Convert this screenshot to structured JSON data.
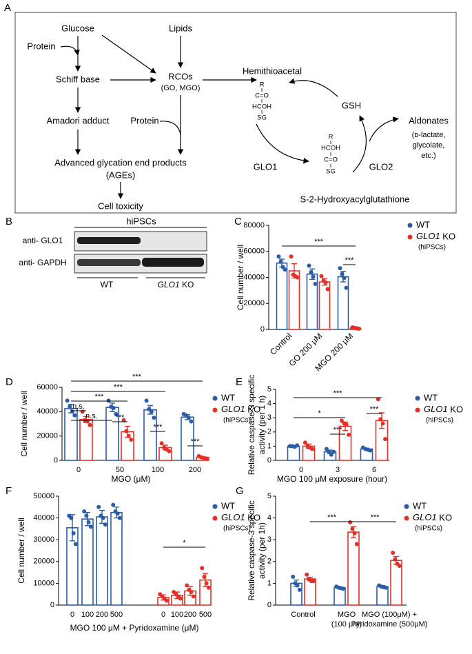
{
  "diagram": {
    "panel": "A",
    "labels": [
      "Glucose",
      "Protein",
      "Lipids",
      "Schiff base",
      "RCOs",
      "(GO, MGO)",
      "Amadori adduct",
      "Protein",
      "Advanced glycation end products",
      "(AGEs)",
      "Cell toxicity",
      "Hemithioacetal",
      "R",
      "C=O",
      "HCOH",
      "SG",
      "GSH",
      "Aldonates",
      "(ᴅ-lactate,",
      "glycolate,",
      "etc.)",
      "GLO1",
      "GLO2",
      "R",
      "HCOH",
      "C=O",
      "SG",
      "S-2-Hydroxyacylglutathione"
    ]
  },
  "blot": {
    "panel": "B",
    "title": "hiPSCs",
    "rows": [
      "anti- GLO1",
      "anti- GAPDH"
    ],
    "groups": [
      "WT",
      "GLO1 KO"
    ]
  },
  "chart_data": [
    {
      "type": "bar",
      "panel": "C",
      "ylabel": [
        "Cell number / well"
      ],
      "categories": [
        "Control",
        "GO 200 μM",
        "MGO 200 μM"
      ],
      "ylim": [
        0,
        80000
      ],
      "yticks": [
        0,
        20000,
        40000,
        60000,
        80000
      ],
      "legend_note": "(hiPSCs)",
      "annotations": [
        "***",
        "***"
      ],
      "series": [
        {
          "name": "WT",
          "color": "#2a5caa",
          "values": [
            51000,
            42500,
            40500
          ],
          "errors": [
            3000,
            4000,
            4000
          ],
          "points": [
            [
              56000,
              52000,
              48000,
              46000
            ],
            [
              49000,
              44000,
              40500,
              35000
            ],
            [
              47000,
              42500,
              39500,
              32000
            ]
          ]
        },
        {
          "name": "GLO1 KO",
          "color": "#e53027",
          "values": [
            45000,
            36500,
            1000
          ],
          "errors": [
            5500,
            2500,
            300
          ],
          "points": [
            [
              56000,
              42000,
              41000,
              40000
            ],
            [
              41000,
              37500,
              36000,
              31000
            ],
            [
              1500,
              1200,
              900,
              500
            ]
          ]
        }
      ]
    },
    {
      "type": "bar",
      "panel": "D",
      "ylabel": [
        "Cell number / well"
      ],
      "xlabel": "MGO (μM)",
      "categories": [
        "0",
        "50",
        "100",
        "200"
      ],
      "ylim": [
        0,
        60000
      ],
      "yticks": [
        0,
        20000,
        40000,
        60000
      ],
      "legend_note": "(hiPSCs)",
      "annotations": [
        "***",
        "***",
        "***",
        "n.s.",
        "n.s.",
        "***",
        "***",
        "***"
      ],
      "series": [
        {
          "name": "WT",
          "color": "#2a5caa",
          "values": [
            42500,
            43500,
            41500,
            35500
          ],
          "errors": [
            3500,
            3500,
            3500,
            2000
          ],
          "points": [
            [
              49000,
              44000,
              40000,
              37000
            ],
            [
              49000,
              44000,
              43000,
              38000
            ],
            [
              49000,
              42000,
              40000,
              35000
            ],
            [
              38000,
              37000,
              35000,
              32000
            ]
          ]
        },
        {
          "name": "GLO1 KO",
          "color": "#e53027",
          "values": [
            33500,
            23500,
            10500,
            2500
          ],
          "errors": [
            2500,
            4500,
            2000,
            500
          ],
          "points": [
            [
              40000,
              33000,
              32000,
              29000
            ],
            [
              33000,
              24000,
              20000,
              17000
            ],
            [
              14000,
              10500,
              9000,
              7500
            ],
            [
              3500,
              2500,
              2000,
              1500
            ]
          ]
        }
      ]
    },
    {
      "type": "bar",
      "panel": "E",
      "ylabel": [
        "Relative caspase-3 specific",
        "activity (per 1 h)"
      ],
      "xlabel": "MGO 100 μM exposure (hour)",
      "categories": [
        "0",
        "3",
        "6"
      ],
      "ylim": [
        0,
        5
      ],
      "yticks": [
        0,
        1,
        2,
        3,
        4,
        5
      ],
      "legend_note": "(hiPSCs)",
      "annotations": [
        "***",
        "*",
        "***",
        "***"
      ],
      "series": [
        {
          "name": "WT",
          "color": "#2a5caa",
          "values": [
            1.0,
            0.6,
            0.8
          ],
          "errors": [
            0.05,
            0.12,
            0.06
          ],
          "points": [
            [
              1.0,
              1.0,
              0.95,
              1.05
            ],
            [
              0.8,
              0.6,
              0.4,
              0.6
            ],
            [
              0.9,
              0.8,
              0.75,
              0.7
            ]
          ]
        },
        {
          "name": "GLO1 KO",
          "color": "#e53027",
          "values": [
            1.0,
            2.4,
            2.8
          ],
          "errors": [
            0.15,
            0.3,
            0.55
          ],
          "points": [
            [
              1.25,
              1.0,
              0.9,
              0.8
            ],
            [
              2.8,
              2.6,
              2.5,
              1.8
            ],
            [
              4.3,
              2.9,
              2.6,
              1.5
            ]
          ]
        }
      ]
    },
    {
      "type": "bar",
      "panel": "F",
      "ylabel": [
        "Cell number / well"
      ],
      "xlabel": "MGO 100 μM + Pyridoxamine (μM)",
      "categories": [
        "0",
        "100",
        "200",
        "500",
        "0",
        "100",
        "200",
        "500"
      ],
      "ylim": [
        0,
        50000
      ],
      "yticks": [
        0,
        10000,
        20000,
        30000,
        40000,
        50000
      ],
      "legend_note": "(hiPSCs)",
      "annotations": [
        "*"
      ],
      "series": [
        {
          "name": "WT",
          "color": "#2a5caa",
          "values": [
            35500,
            39500,
            40500,
            42500,
            null,
            null,
            null,
            null
          ],
          "errors": [
            6000,
            3000,
            3000,
            2500,
            null,
            null,
            null,
            null
          ],
          "points": [
            [
              41000,
              40000,
              33000,
              28000
            ],
            [
              43000,
              41000,
              38000,
              36000
            ],
            [
              45000,
              41000,
              40000,
              37000
            ],
            [
              46000,
              43000,
              42000,
              40000
            ],
            null,
            null,
            null,
            null
          ]
        },
        {
          "name": "GLO1 KO",
          "color": "#e53027",
          "values": [
            null,
            null,
            null,
            null,
            3500,
            4500,
            6500,
            11500
          ],
          "errors": [
            null,
            null,
            null,
            null,
            1200,
            1500,
            2000,
            3000
          ],
          "points": [
            null,
            null,
            null,
            null,
            [
              5000,
              4000,
              3000,
              2000
            ],
            [
              6000,
              5000,
              4000,
              3000
            ],
            [
              9000,
              7000,
              6000,
              4000
            ],
            [
              17000,
              13000,
              10000,
              8000
            ]
          ]
        }
      ]
    },
    {
      "type": "bar",
      "panel": "G",
      "ylabel": [
        "Relative caspase-3 specific",
        "activity (per 1h)"
      ],
      "categories": [
        [
          "Control"
        ],
        [
          "MGO",
          "(100 μM)"
        ],
        [
          "MGO (100μM) +",
          "Pyridoxamine (500μM)"
        ]
      ],
      "ylim": [
        0,
        5
      ],
      "yticks": [
        0,
        1,
        2,
        3,
        4,
        5
      ],
      "legend_note": "(hiPSCs)",
      "annotations": [
        "***",
        "***"
      ],
      "series": [
        {
          "name": "WT",
          "color": "#2a5caa",
          "values": [
            1.0,
            0.8,
            0.85
          ],
          "errors": [
            0.15,
            0.03,
            0.05
          ],
          "points": [
            [
              1.3,
              1.0,
              0.9,
              0.7
            ],
            [
              0.85,
              0.8,
              0.78,
              0.75
            ],
            [
              0.9,
              0.85,
              0.82,
              0.8
            ]
          ]
        },
        {
          "name": "GLO1 KO",
          "color": "#e53027",
          "values": [
            1.2,
            3.35,
            2.05
          ],
          "errors": [
            0.08,
            0.25,
            0.18
          ],
          "points": [
            [
              1.4,
              1.2,
              1.1,
              1.1
            ],
            [
              3.8,
              3.5,
              3.3,
              2.8
            ],
            [
              2.4,
              2.1,
              1.9,
              1.8
            ]
          ]
        }
      ]
    }
  ]
}
